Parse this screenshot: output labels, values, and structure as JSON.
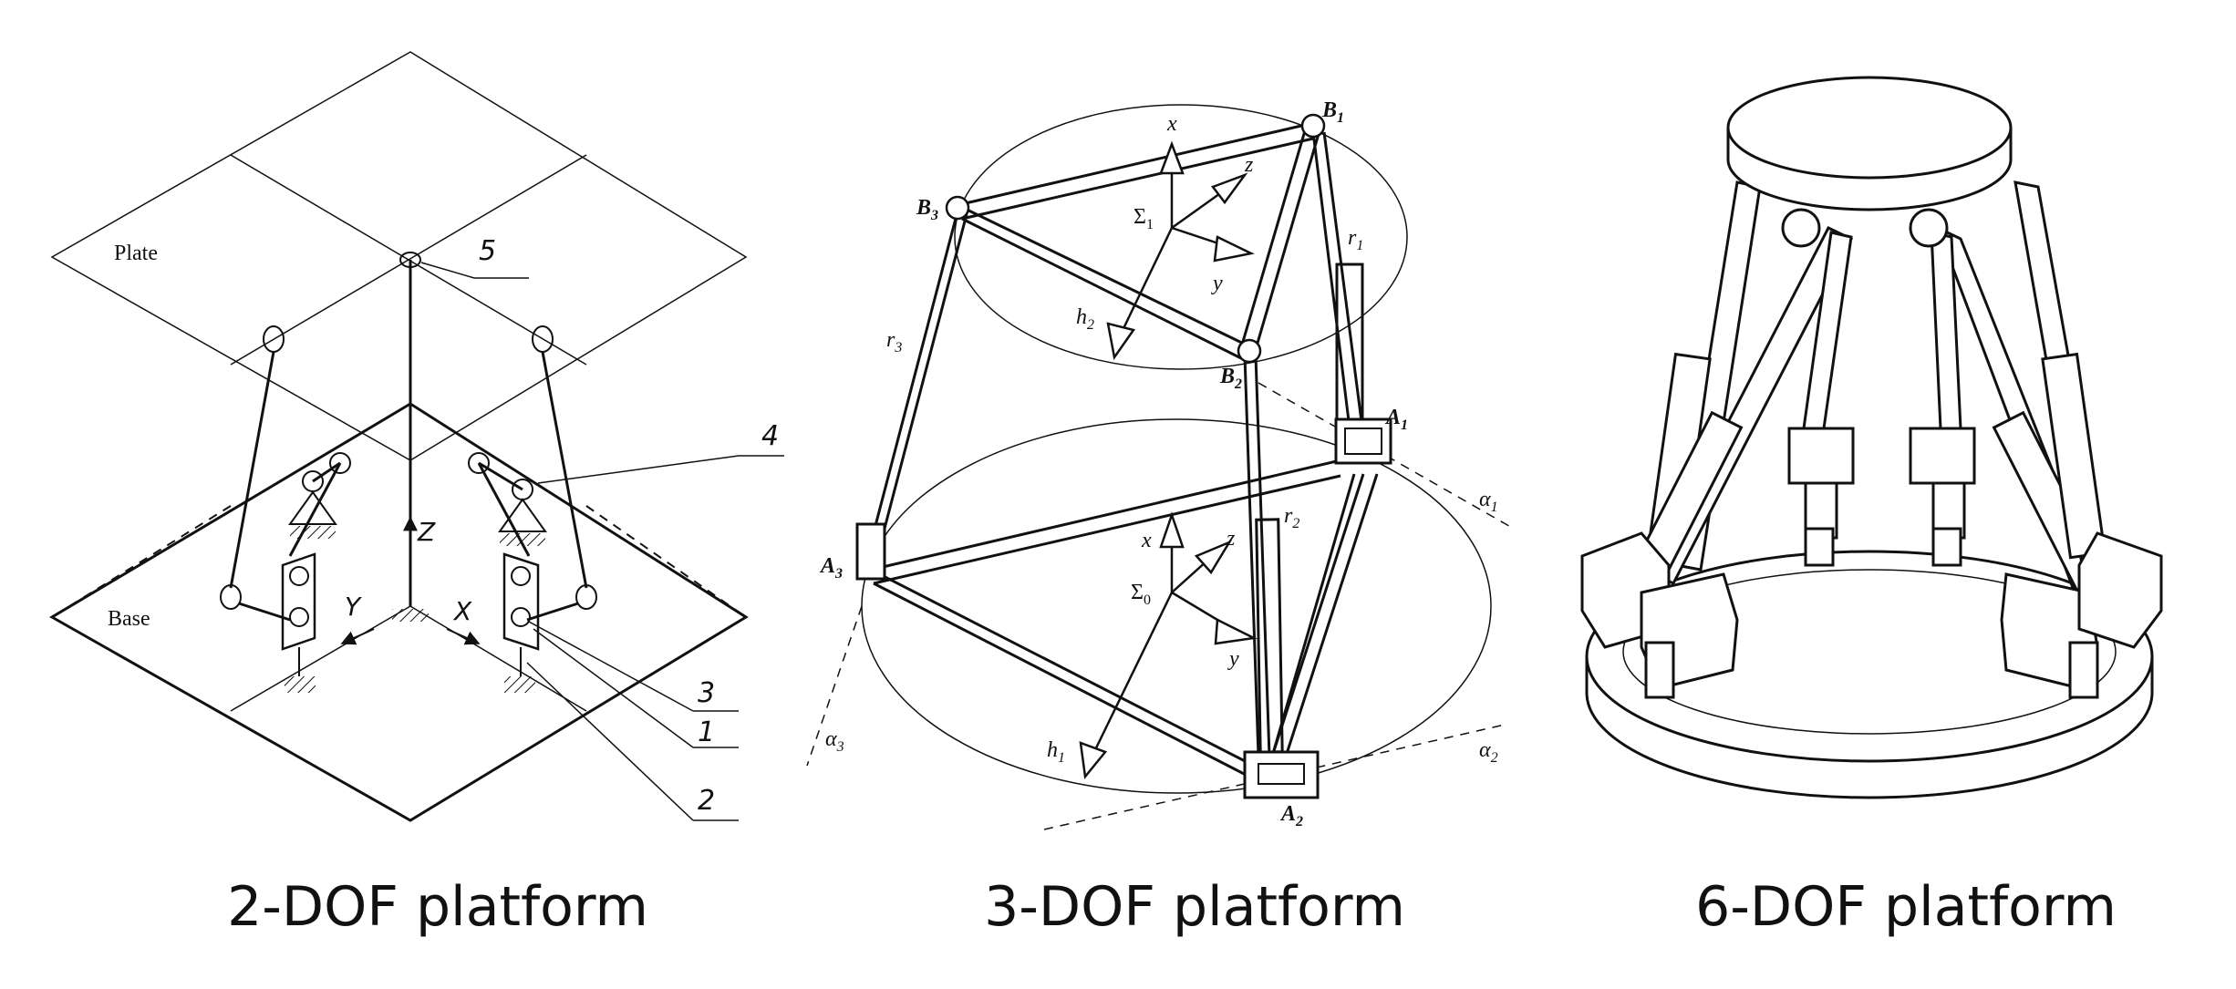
{
  "captions": {
    "left": "2-DOF platform",
    "middle": "3-DOF platform",
    "right": "6-DOF platform"
  },
  "dof2": {
    "plate_label": "Plate",
    "base_label": "Base",
    "axis_z": "Z",
    "axis_y": "Y",
    "axis_x": "X",
    "callouts": [
      "5",
      "4",
      "3",
      "1",
      "2"
    ]
  },
  "dof3": {
    "points": {
      "B1": "B",
      "B1_sub": "1",
      "B2": "B",
      "B2_sub": "2",
      "B3": "B",
      "B3_sub": "3",
      "A1": "A",
      "A1_sub": "1",
      "A2": "A",
      "A2_sub": "2",
      "A3": "A",
      "A3_sub": "3"
    },
    "legs": {
      "r1": "r",
      "r1_sub": "1",
      "r2": "r",
      "r2_sub": "2",
      "r3": "r",
      "r3_sub": "3"
    },
    "frames": {
      "top": {
        "sigma": "Σ",
        "sigma_sub": "1",
        "x": "x",
        "y": "y",
        "z": "z",
        "h": "h",
        "h_sub": "2"
      },
      "bottom": {
        "sigma": "Σ",
        "sigma_sub": "0",
        "x": "x",
        "y": "y",
        "z": "z",
        "h": "h",
        "h_sub": "1"
      }
    },
    "alphas": {
      "a1": "α",
      "a1_sub": "1",
      "a2": "α",
      "a2_sub": "2",
      "a3": "α",
      "a3_sub": "3"
    }
  }
}
